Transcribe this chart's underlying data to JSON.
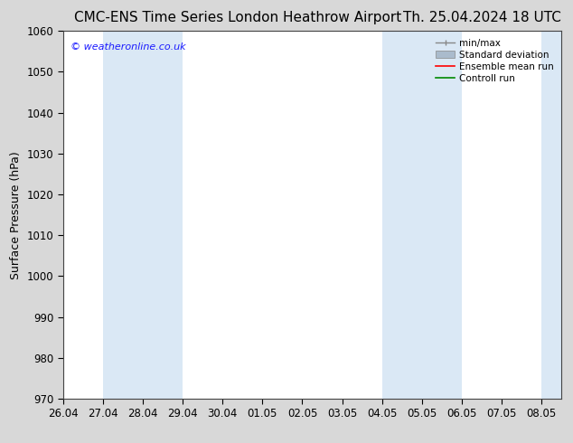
{
  "title_left": "CMC-ENS Time Series London Heathrow Airport",
  "title_right": "Th. 25.04.2024 18 UTC",
  "ylabel": "Surface Pressure (hPa)",
  "ylim": [
    970,
    1060
  ],
  "yticks": [
    970,
    980,
    990,
    1000,
    1010,
    1020,
    1030,
    1040,
    1050,
    1060
  ],
  "xtick_labels": [
    "26.04",
    "27.04",
    "28.04",
    "29.04",
    "30.04",
    "01.05",
    "02.05",
    "03.05",
    "04.05",
    "05.05",
    "06.05",
    "07.05",
    "08.05"
  ],
  "xtick_positions": [
    0,
    1,
    2,
    3,
    4,
    5,
    6,
    7,
    8,
    9,
    10,
    11,
    12
  ],
  "shade_bands": [
    {
      "x_start": 1,
      "x_end": 3
    },
    {
      "x_start": 8,
      "x_end": 10
    }
  ],
  "right_shade_start": 12,
  "watermark_text": "© weatheronline.co.uk",
  "watermark_color": "#1a1aff",
  "shade_color": "#dae8f5",
  "background_color": "#d8d8d8",
  "plot_bg_color": "#ffffff",
  "legend_labels": [
    "min/max",
    "Standard deviation",
    "Ensemble mean run",
    "Controll run"
  ],
  "legend_colors": [
    "#888888",
    "#aabbcc",
    "#ff0000",
    "#008800"
  ],
  "title_fontsize": 11,
  "axis_label_fontsize": 9,
  "tick_fontsize": 8.5,
  "legend_fontsize": 7.5
}
